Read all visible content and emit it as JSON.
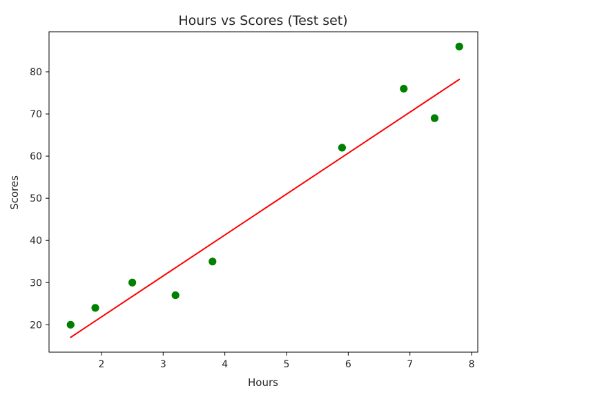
{
  "chart_data": {
    "type": "scatter",
    "title": "Hours vs Scores (Test set)",
    "xlabel": "Hours",
    "ylabel": "Scores",
    "xlim": [
      1.15,
      8.1
    ],
    "ylim": [
      13.5,
      89.5
    ],
    "xticks": [
      2,
      3,
      4,
      5,
      6,
      7,
      8
    ],
    "yticks": [
      20,
      30,
      40,
      50,
      60,
      70,
      80
    ],
    "grid": false,
    "series": [
      {
        "type": "scatter",
        "color": "#008000",
        "points": [
          {
            "x": 1.5,
            "y": 20
          },
          {
            "x": 1.9,
            "y": 24
          },
          {
            "x": 2.5,
            "y": 30
          },
          {
            "x": 3.2,
            "y": 27
          },
          {
            "x": 3.8,
            "y": 35
          },
          {
            "x": 5.9,
            "y": 62
          },
          {
            "x": 6.9,
            "y": 76
          },
          {
            "x": 7.4,
            "y": 69
          },
          {
            "x": 7.8,
            "y": 86
          }
        ]
      },
      {
        "type": "line",
        "color": "#ff0000",
        "points": [
          {
            "x": 1.5,
            "y": 17.0
          },
          {
            "x": 7.8,
            "y": 78.2
          }
        ]
      }
    ]
  }
}
